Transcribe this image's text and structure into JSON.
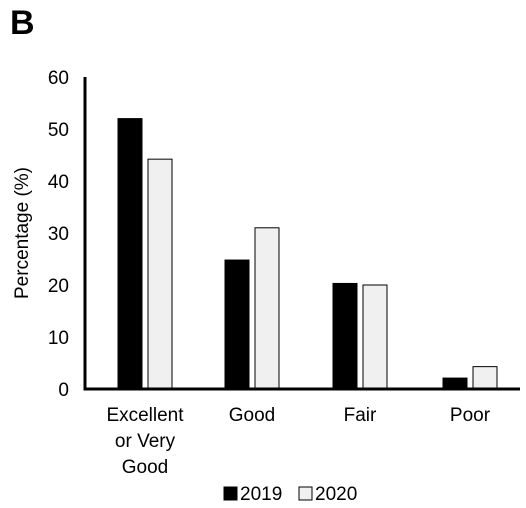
{
  "panel_label": "B",
  "colors": {
    "series_2019": "#000000",
    "series_2020": "#f0f0f0",
    "stroke": "#000000"
  },
  "chart_data": {
    "type": "bar",
    "title": "",
    "xlabel": "",
    "ylabel": "Percentage (%)",
    "ylim": [
      0,
      60
    ],
    "yticks": [
      0,
      10,
      20,
      30,
      40,
      50,
      60
    ],
    "categories": [
      [
        "Excellent",
        "or Very",
        "Good"
      ],
      [
        "Good"
      ],
      [
        "Fair"
      ],
      [
        "Poor"
      ]
    ],
    "series": [
      {
        "name": "2019",
        "values": [
          52,
          24.8,
          20.3,
          2.1
        ]
      },
      {
        "name": "2020",
        "values": [
          44.2,
          31,
          20,
          4.3
        ]
      }
    ],
    "grid": false,
    "legend_position": "bottom-center"
  }
}
